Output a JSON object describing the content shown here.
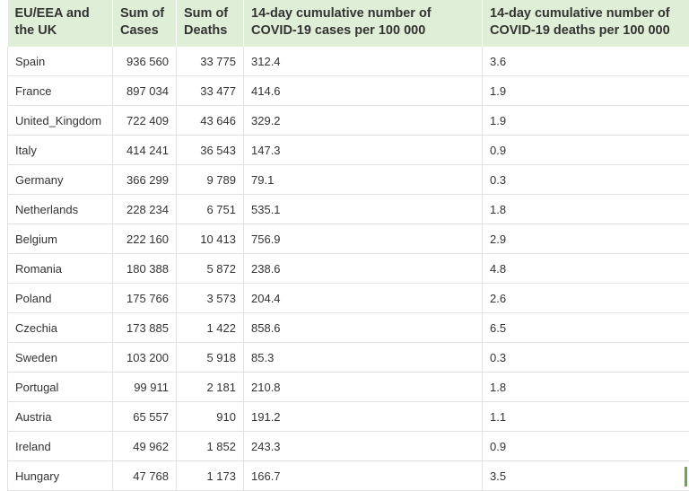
{
  "table": {
    "header": [
      "EU/EEA and the UK",
      "Sum of Cases",
      "Sum of Deaths",
      "14-day cumulative number of COVID-19 cases per 100 000",
      "14-day cumulative number of COVID-19 deaths per 100 000"
    ],
    "rows": [
      [
        "Spain",
        "936 560",
        "33 775",
        "312.4",
        "3.6"
      ],
      [
        "France",
        "897 034",
        "33 477",
        "414.6",
        "1.9"
      ],
      [
        "United_Kingdom",
        "722 409",
        "43 646",
        "329.2",
        "1.9"
      ],
      [
        "Italy",
        "414 241",
        "36 543",
        "147.3",
        "0.9"
      ],
      [
        "Germany",
        "366 299",
        "9 789",
        "79.1",
        "0.3"
      ],
      [
        "Netherlands",
        "228 234",
        "6 751",
        "535.1",
        "1.8"
      ],
      [
        "Belgium",
        "222 160",
        "10 413",
        "756.9",
        "2.9"
      ],
      [
        "Romania",
        "180 388",
        "5 872",
        "238.6",
        "4.8"
      ],
      [
        "Poland",
        "175 766",
        "3 573",
        "204.4",
        "2.6"
      ],
      [
        "Czechia",
        "173 885",
        "1 422",
        "858.6",
        "6.5"
      ],
      [
        "Sweden",
        "103 200",
        "5 918",
        "85.3",
        "0.3"
      ],
      [
        "Portugal",
        "99 911",
        "2 181",
        "210.8",
        "1.8"
      ],
      [
        "Austria",
        "65 557",
        "910",
        "191.2",
        "1.1"
      ],
      [
        "Ireland",
        "49 962",
        "1 852",
        "243.3",
        "0.9"
      ],
      [
        "Hungary",
        "47 768",
        "1 173",
        "166.7",
        "3.5"
      ]
    ]
  }
}
